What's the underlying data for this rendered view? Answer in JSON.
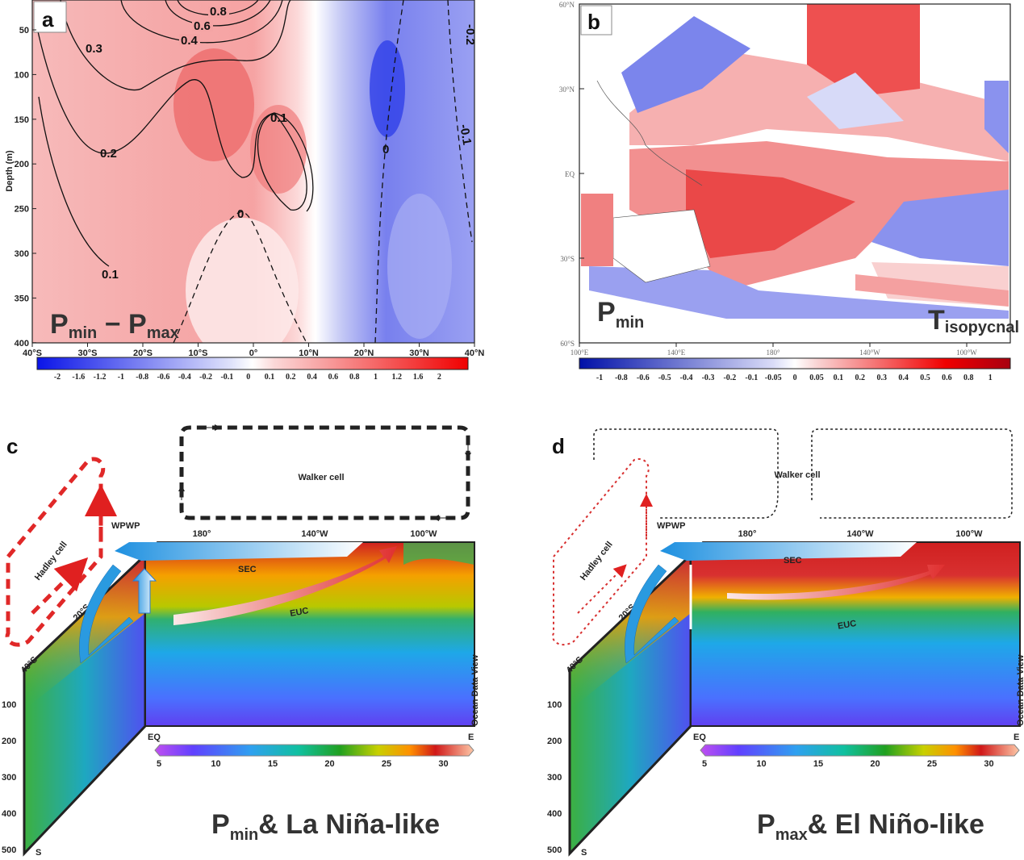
{
  "chart_data": [
    {
      "panel": "a",
      "type": "heatmap",
      "title_main": "P",
      "title_sub1": "min",
      "title_mid": " − P",
      "title_sub2": "max",
      "ylabel": "Depth (m)",
      "xticks": [
        "40°S",
        "30°S",
        "20°S",
        "10°S",
        "0°",
        "10°N",
        "20°N",
        "30°N",
        "40°N"
      ],
      "yticks": [
        "50",
        "100",
        "150",
        "200",
        "250",
        "300",
        "350",
        "400"
      ],
      "ylim": [
        400,
        16
      ],
      "xlim": [
        "40°S",
        "40°N"
      ],
      "colorbar_levels": [
        "-2",
        "-1.6",
        "-1.2",
        "-1",
        "-0.8",
        "-0.6",
        "-0.4",
        "-0.2",
        "-0.1",
        "0",
        "0.1",
        "0.2",
        "0.4",
        "0.6",
        "0.8",
        "1",
        "1.2",
        "1.6",
        "2"
      ],
      "contour_labels": [
        "0.8",
        "0.6",
        "0.4",
        "0.3",
        "0.2",
        "0.1",
        "0.1",
        "0",
        "0",
        "-0.2",
        "-0.1"
      ],
      "colors": {
        "negative": "#1f2be0",
        "zero": "#ffffff",
        "positive": "#f01010"
      }
    },
    {
      "panel": "b",
      "type": "heatmap",
      "title_main": "P",
      "title_sub": "min",
      "label_main": "T",
      "label_sub": "isopycnal",
      "yticks": [
        "60°N",
        "30°N",
        "EQ",
        "30°S",
        "60°S"
      ],
      "xticks": [
        "100°E",
        "140°E",
        "180°",
        "140°W",
        "100°W"
      ],
      "colorbar_levels": [
        "-1",
        "-0.8",
        "-0.6",
        "-0.5",
        "-0.4",
        "-0.3",
        "-0.2",
        "-0.1",
        "-0.05",
        "0",
        "0.05",
        "0.1",
        "0.2",
        "0.3",
        "0.4",
        "0.5",
        "0.6",
        "0.8",
        "1"
      ],
      "colors": {
        "negative": "#0a1ab0",
        "zero": "#ffffff",
        "positive": "#b00010"
      }
    },
    {
      "panel": "c",
      "type": "heatmap",
      "title_main": "P",
      "title_sub": "min",
      "title_rest": "& La Niña-like",
      "labels": {
        "walker": "Walker cell",
        "hadley": "Hadley cell",
        "wpwp": "WPWP",
        "sec": "SEC",
        "euc": "EUC",
        "eq": "EQ",
        "e": "E",
        "s": "S",
        "lat20": "20°S",
        "lat40": "40°S",
        "credit": "Ocean Data View"
      },
      "xticks": [
        "180°",
        "140°W",
        "100°W"
      ],
      "depth_ticks": [
        "100",
        "200",
        "300",
        "400",
        "500"
      ],
      "colorbar_ticks": [
        "5",
        "10",
        "15",
        "20",
        "25",
        "30"
      ]
    },
    {
      "panel": "d",
      "type": "heatmap",
      "title_main": "P",
      "title_sub": "max",
      "title_rest": "& El Niño-like",
      "labels": {
        "walker": "Walker cell",
        "hadley": "Hadley cell",
        "wpwp": "WPWP",
        "sec": "SEC",
        "euc": "EUC",
        "eq": "EQ",
        "e": "E",
        "s": "S",
        "lat20": "20°S",
        "lat40": "40°S",
        "credit": "Ocean Data View"
      },
      "xticks": [
        "180°",
        "140°W",
        "100°W"
      ],
      "depth_ticks": [
        "100",
        "200",
        "300",
        "400",
        "500"
      ],
      "colorbar_ticks": [
        "5",
        "10",
        "15",
        "20",
        "25",
        "30"
      ]
    }
  ]
}
